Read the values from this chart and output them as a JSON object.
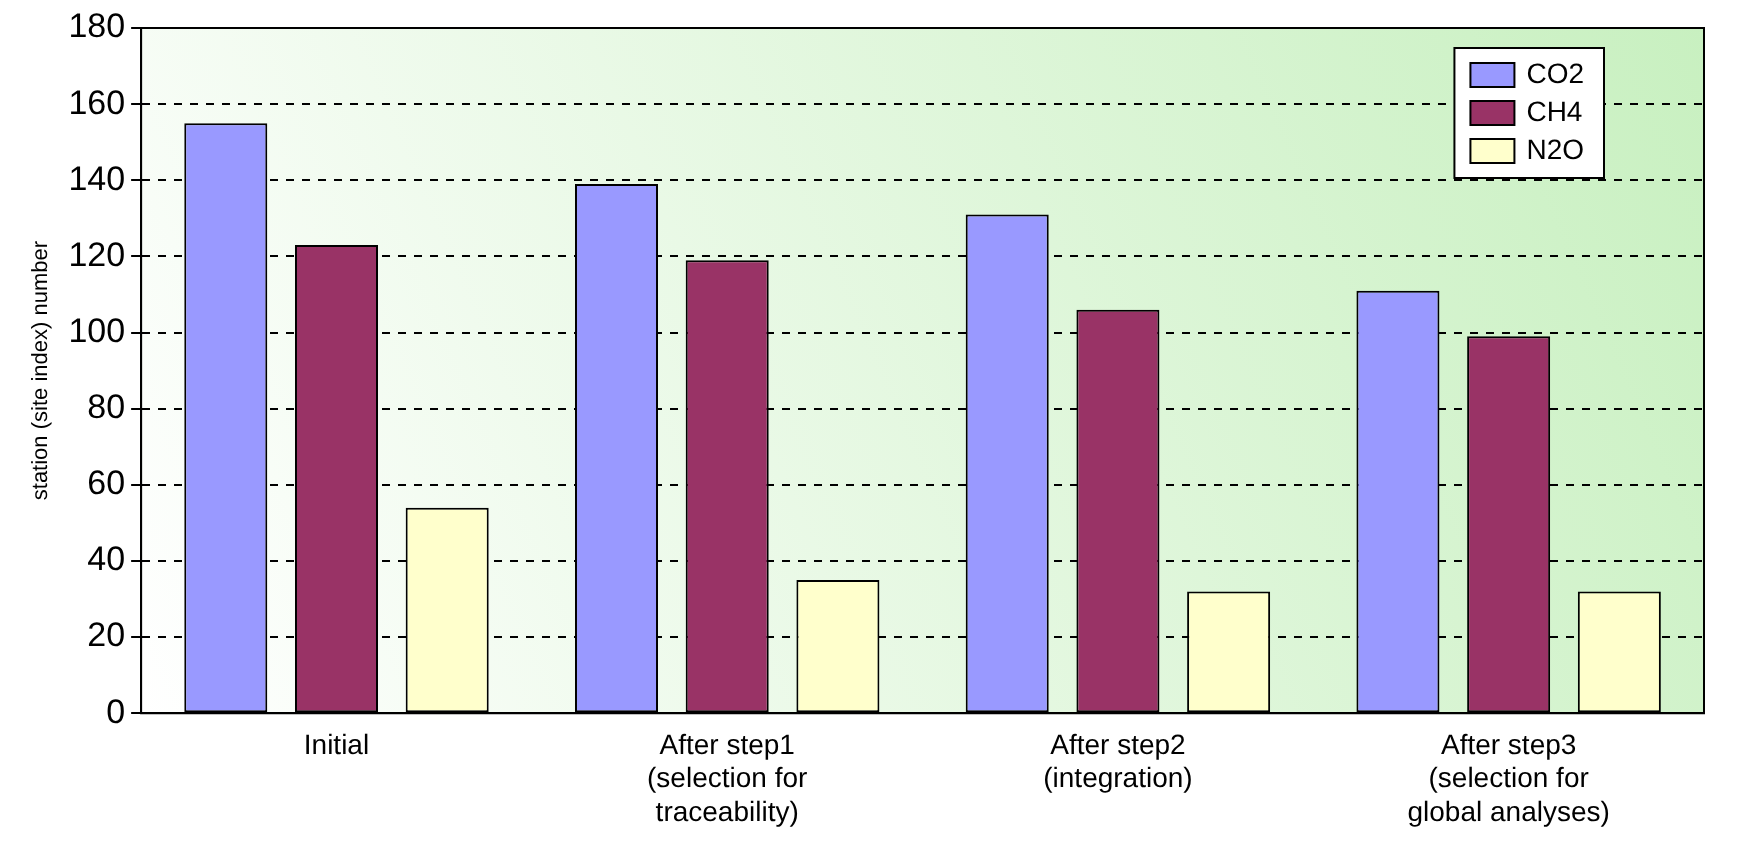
{
  "chart_data": {
    "type": "bar",
    "ylabel": "station (site index) number",
    "categories": [
      "Initial",
      "After step1 (selection for traceability)",
      "After step2 (integration)",
      "After step3 (selection for global analyses)"
    ],
    "series": [
      {
        "name": "CO2",
        "color": "#9999ff",
        "values": [
          155,
          139,
          131,
          111
        ]
      },
      {
        "name": "CH4",
        "color": "#993366",
        "values": [
          123,
          119,
          106,
          99
        ]
      },
      {
        "name": "N2O",
        "color": "#ffffcc",
        "values": [
          54,
          35,
          32,
          32
        ]
      }
    ],
    "ylim": [
      0,
      180
    ],
    "yticks": [
      0,
      20,
      40,
      60,
      80,
      100,
      120,
      140,
      160,
      180
    ],
    "grid": "y",
    "legend": "top right"
  }
}
